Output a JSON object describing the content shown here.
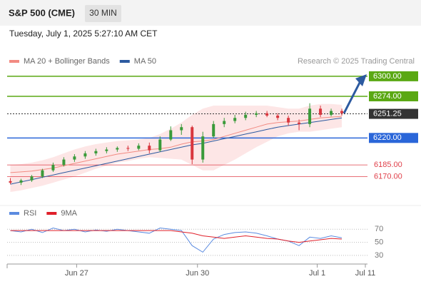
{
  "header": {
    "title": "S&P 500 (CME)",
    "timeframe": "30 MIN",
    "datetime": "Tuesday, July 1, 2025 5:27:10 AM CET",
    "credit": "Research © 2025 Trading Central"
  },
  "chart_data": [
    {
      "type": "candlestick",
      "legend": [
        {
          "name": "MA 20 + Bollinger Bands",
          "color": "#f28b82"
        },
        {
          "name": "MA 50",
          "color": "#2c5aa0"
        }
      ],
      "x": [
        0,
        1,
        2,
        3,
        4,
        5,
        6,
        7,
        8,
        9,
        10,
        11,
        12,
        13,
        14,
        15,
        16,
        17,
        18,
        19,
        20,
        21,
        22,
        23,
        24,
        25,
        26,
        27,
        28,
        29,
        30,
        31
      ],
      "open": [
        6164,
        6162,
        6165,
        6170,
        6178,
        6185,
        6192,
        6196,
        6200,
        6203,
        6205,
        6207,
        6206,
        6210,
        6204,
        6218,
        6230,
        6234,
        6192,
        6222,
        6238,
        6242,
        6246,
        6250,
        6252,
        6249,
        6246,
        6240,
        6238,
        6258,
        6250,
        6255
      ],
      "high": [
        6168,
        6167,
        6172,
        6180,
        6188,
        6195,
        6199,
        6203,
        6206,
        6208,
        6209,
        6210,
        6213,
        6214,
        6222,
        6235,
        6238,
        6236,
        6228,
        6242,
        6246,
        6250,
        6254,
        6255,
        6255,
        6252,
        6249,
        6244,
        6265,
        6262,
        6258,
        6258
      ],
      "low": [
        6160,
        6159,
        6163,
        6168,
        6176,
        6183,
        6189,
        6193,
        6197,
        6200,
        6202,
        6203,
        6204,
        6200,
        6202,
        6216,
        6224,
        6186,
        6188,
        6220,
        6234,
        6239,
        6243,
        6247,
        6247,
        6243,
        6236,
        6230,
        6234,
        6247,
        6248,
        6249
      ],
      "close": [
        6162,
        6165,
        6170,
        6178,
        6185,
        6192,
        6196,
        6200,
        6203,
        6205,
        6207,
        6206,
        6210,
        6204,
        6218,
        6230,
        6234,
        6192,
        6222,
        6238,
        6242,
        6246,
        6250,
        6252,
        6249,
        6246,
        6240,
        6238,
        6258,
        6250,
        6255,
        6252
      ],
      "up_color": "#3a9a3a",
      "down_color": "#d9363e",
      "ma20": [
        6175,
        6176,
        6177,
        6179,
        6181,
        6184,
        6187,
        6190,
        6193,
        6196,
        6199,
        6201,
        6203,
        6205,
        6206,
        6208,
        6212,
        6215,
        6216,
        6218,
        6222,
        6226,
        6230,
        6234,
        6238,
        6240,
        6241,
        6242,
        6244,
        6246,
        6247,
        6248
      ],
      "ma50": [
        6160,
        6163,
        6166,
        6169,
        6172,
        6175,
        6178,
        6181,
        6184,
        6187,
        6190,
        6193,
        6196,
        6199,
        6202,
        6205,
        6208,
        6211,
        6213,
        6216,
        6219,
        6222,
        6225,
        6228,
        6231,
        6234,
        6236,
        6238,
        6240,
        6242,
        6244,
        6246
      ],
      "bb_upper": [
        6185,
        6186,
        6188,
        6191,
        6195,
        6200,
        6205,
        6209,
        6212,
        6214,
        6216,
        6217,
        6218,
        6220,
        6225,
        6232,
        6240,
        6250,
        6258,
        6262,
        6262,
        6262,
        6262,
        6262,
        6262,
        6260,
        6258,
        6258,
        6262,
        6264,
        6264,
        6263
      ],
      "bb_lower": [
        6150,
        6152,
        6155,
        6158,
        6162,
        6166,
        6170,
        6175,
        6180,
        6184,
        6188,
        6190,
        6193,
        6195,
        6194,
        6193,
        6192,
        6185,
        6178,
        6178,
        6185,
        6192,
        6200,
        6208,
        6215,
        6222,
        6226,
        6228,
        6228,
        6230,
        6232,
        6234
      ],
      "levels": [
        {
          "value": 6300,
          "label": "6300.00",
          "color": "#5aa813",
          "box": true
        },
        {
          "value": 6274,
          "label": "6274.00",
          "color": "#5aa813",
          "box": true
        },
        {
          "value": 6251.25,
          "label": "6251.25",
          "color": "#333333",
          "box": true,
          "dotted": true
        },
        {
          "value": 6220,
          "label": "6220.00",
          "color": "#2a66d9",
          "box": true
        },
        {
          "value": 6185,
          "label": "6185.00",
          "color": "#e0404a",
          "box": false
        },
        {
          "value": 6170,
          "label": "6170.00",
          "color": "#e0404a",
          "box": false
        }
      ],
      "xlim": [
        -0.3,
        33.4
      ],
      "ylim": [
        6137,
        6311
      ]
    },
    {
      "type": "line",
      "x": [
        0,
        1,
        2,
        3,
        4,
        5,
        6,
        7,
        8,
        9,
        10,
        11,
        12,
        13,
        14,
        15,
        16,
        17,
        18,
        19,
        20,
        21,
        22,
        23,
        24,
        25,
        26,
        27,
        28,
        29,
        30,
        31
      ],
      "series": [
        {
          "name": "RSI",
          "color": "#5b8be0",
          "values": [
            68,
            66,
            70,
            65,
            72,
            68,
            70,
            66,
            69,
            67,
            70,
            68,
            66,
            64,
            72,
            70,
            68,
            45,
            35,
            55,
            62,
            65,
            66,
            64,
            60,
            55,
            52,
            45,
            58,
            56,
            60,
            57
          ]
        },
        {
          "name": "9MA",
          "color": "#e0202a",
          "values": [
            68,
            68,
            68,
            68,
            68,
            68,
            68,
            68,
            68,
            68,
            68,
            68,
            68,
            68,
            68,
            68,
            66,
            64,
            60,
            58,
            56,
            58,
            60,
            58,
            56,
            55,
            52,
            50,
            52,
            54,
            56,
            55
          ]
        }
      ],
      "xlim": [
        -0.3,
        33.4
      ],
      "ylim": [
        19,
        90
      ],
      "yticks": [
        70,
        50,
        30
      ],
      "xticks": [
        {
          "value": 6.2,
          "label": "Jun 27"
        },
        {
          "value": 17.5,
          "label": "Jun 30"
        },
        {
          "value": 28.7,
          "label": "Jul 1"
        },
        {
          "value": 33.2,
          "label": "Jul 11"
        }
      ]
    }
  ]
}
